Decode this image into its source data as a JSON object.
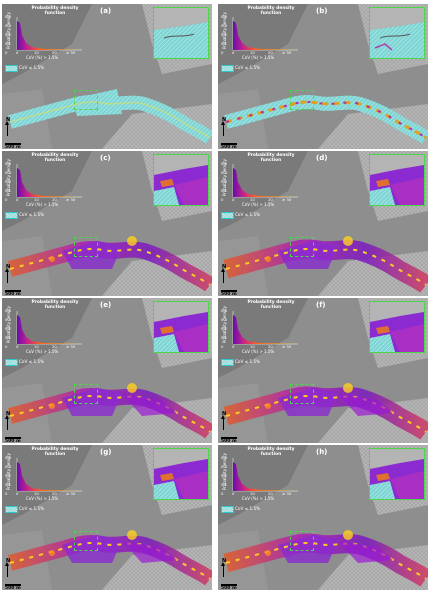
{
  "panels": [
    {
      "label": "(a)",
      "variant": 0
    },
    {
      "label": "(b)",
      "variant": 1
    },
    {
      "label": "(c)",
      "variant": 2
    },
    {
      "label": "(d)",
      "variant": 3
    },
    {
      "label": "(e)",
      "variant": 4
    },
    {
      "label": "(f)",
      "variant": 5
    },
    {
      "label": "(g)",
      "variant": 6
    },
    {
      "label": "(h)",
      "variant": 7
    }
  ],
  "pdf": {
    "title": "Probability density function",
    "ylabel": "Probability density",
    "xlabel": "CoV (%) > 1.5%",
    "yticks": [
      "0.4",
      "0.3",
      "0.2",
      "0.1",
      "0"
    ],
    "xticks": [
      "0",
      "10",
      "20",
      "≥ 30"
    ]
  },
  "legend_label": "CoV ≤ 1.5%",
  "north_label": "N",
  "scale_label": "500 m",
  "colors": {
    "cyan_hatch": "#2ec8c8",
    "green_box": "#4cd64c",
    "low_cov": "#6a0dad",
    "high_cov": "#ffd21f"
  }
}
